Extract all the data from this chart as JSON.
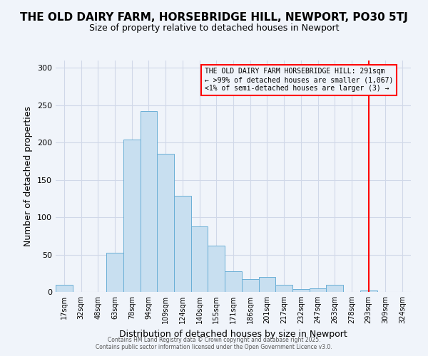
{
  "title": "THE OLD DAIRY FARM, HORSEBRIDGE HILL, NEWPORT, PO30 5TJ",
  "subtitle": "Size of property relative to detached houses in Newport",
  "xlabel": "Distribution of detached houses by size in Newport",
  "ylabel": "Number of detached properties",
  "bar_labels": [
    "17sqm",
    "32sqm",
    "48sqm",
    "63sqm",
    "78sqm",
    "94sqm",
    "109sqm",
    "124sqm",
    "140sqm",
    "155sqm",
    "171sqm",
    "186sqm",
    "201sqm",
    "217sqm",
    "232sqm",
    "247sqm",
    "263sqm",
    "278sqm",
    "293sqm",
    "309sqm",
    "324sqm"
  ],
  "bar_values": [
    10,
    0,
    0,
    52,
    204,
    242,
    185,
    129,
    88,
    62,
    28,
    17,
    20,
    10,
    4,
    5,
    10,
    0,
    2,
    0,
    0
  ],
  "bar_color": "#c8dff0",
  "bar_edge_color": "#6aafd6",
  "vline_x_index": 18,
  "vline_color": "red",
  "annotation_box_text": "THE OLD DAIRY FARM HORSEBRIDGE HILL: 291sqm\n← >99% of detached houses are smaller (1,067)\n<1% of semi-detached houses are larger (3) →",
  "annotation_box_color": "red",
  "ylim": [
    0,
    310
  ],
  "yticks": [
    0,
    50,
    100,
    150,
    200,
    250,
    300
  ],
  "footer_line1": "Contains HM Land Registry data © Crown copyright and database right 2025.",
  "footer_line2": "Contains public sector information licensed under the Open Government Licence v3.0.",
  "background_color": "#f0f4fa",
  "grid_color": "#d0d8e8"
}
